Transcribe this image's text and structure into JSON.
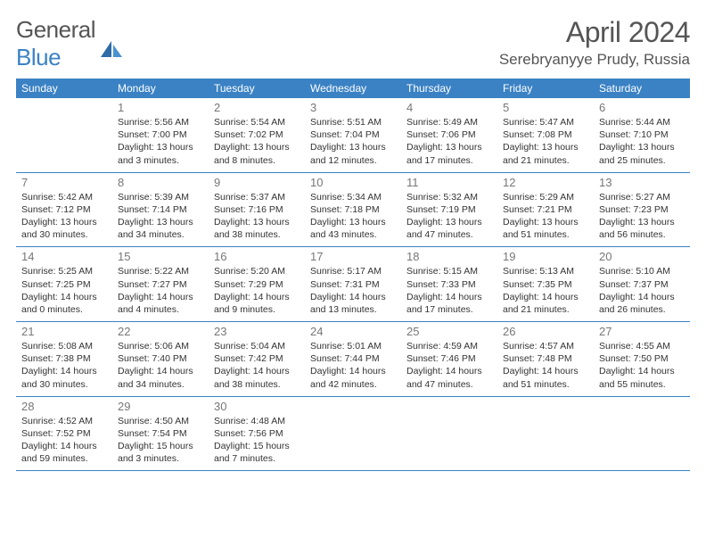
{
  "logo": {
    "general": "General",
    "blue": "Blue"
  },
  "title": "April 2024",
  "location": "Serebryanyye Prudy, Russia",
  "colors": {
    "header_bg": "#3b82c4",
    "header_text": "#ffffff",
    "body_bg": "#ffffff",
    "text": "#333333",
    "day_number": "#777777",
    "divider": "#3b82c4"
  },
  "typography": {
    "title_fontsize": 32,
    "location_fontsize": 17,
    "weekday_fontsize": 12,
    "daynum_fontsize": 13,
    "body_fontsize": 10.5
  },
  "weekdays": [
    "Sunday",
    "Monday",
    "Tuesday",
    "Wednesday",
    "Thursday",
    "Friday",
    "Saturday"
  ],
  "weeks": [
    [
      null,
      {
        "n": "1",
        "sr": "Sunrise: 5:56 AM",
        "ss": "Sunset: 7:00 PM",
        "d1": "Daylight: 13 hours",
        "d2": "and 3 minutes."
      },
      {
        "n": "2",
        "sr": "Sunrise: 5:54 AM",
        "ss": "Sunset: 7:02 PM",
        "d1": "Daylight: 13 hours",
        "d2": "and 8 minutes."
      },
      {
        "n": "3",
        "sr": "Sunrise: 5:51 AM",
        "ss": "Sunset: 7:04 PM",
        "d1": "Daylight: 13 hours",
        "d2": "and 12 minutes."
      },
      {
        "n": "4",
        "sr": "Sunrise: 5:49 AM",
        "ss": "Sunset: 7:06 PM",
        "d1": "Daylight: 13 hours",
        "d2": "and 17 minutes."
      },
      {
        "n": "5",
        "sr": "Sunrise: 5:47 AM",
        "ss": "Sunset: 7:08 PM",
        "d1": "Daylight: 13 hours",
        "d2": "and 21 minutes."
      },
      {
        "n": "6",
        "sr": "Sunrise: 5:44 AM",
        "ss": "Sunset: 7:10 PM",
        "d1": "Daylight: 13 hours",
        "d2": "and 25 minutes."
      }
    ],
    [
      {
        "n": "7",
        "sr": "Sunrise: 5:42 AM",
        "ss": "Sunset: 7:12 PM",
        "d1": "Daylight: 13 hours",
        "d2": "and 30 minutes."
      },
      {
        "n": "8",
        "sr": "Sunrise: 5:39 AM",
        "ss": "Sunset: 7:14 PM",
        "d1": "Daylight: 13 hours",
        "d2": "and 34 minutes."
      },
      {
        "n": "9",
        "sr": "Sunrise: 5:37 AM",
        "ss": "Sunset: 7:16 PM",
        "d1": "Daylight: 13 hours",
        "d2": "and 38 minutes."
      },
      {
        "n": "10",
        "sr": "Sunrise: 5:34 AM",
        "ss": "Sunset: 7:18 PM",
        "d1": "Daylight: 13 hours",
        "d2": "and 43 minutes."
      },
      {
        "n": "11",
        "sr": "Sunrise: 5:32 AM",
        "ss": "Sunset: 7:19 PM",
        "d1": "Daylight: 13 hours",
        "d2": "and 47 minutes."
      },
      {
        "n": "12",
        "sr": "Sunrise: 5:29 AM",
        "ss": "Sunset: 7:21 PM",
        "d1": "Daylight: 13 hours",
        "d2": "and 51 minutes."
      },
      {
        "n": "13",
        "sr": "Sunrise: 5:27 AM",
        "ss": "Sunset: 7:23 PM",
        "d1": "Daylight: 13 hours",
        "d2": "and 56 minutes."
      }
    ],
    [
      {
        "n": "14",
        "sr": "Sunrise: 5:25 AM",
        "ss": "Sunset: 7:25 PM",
        "d1": "Daylight: 14 hours",
        "d2": "and 0 minutes."
      },
      {
        "n": "15",
        "sr": "Sunrise: 5:22 AM",
        "ss": "Sunset: 7:27 PM",
        "d1": "Daylight: 14 hours",
        "d2": "and 4 minutes."
      },
      {
        "n": "16",
        "sr": "Sunrise: 5:20 AM",
        "ss": "Sunset: 7:29 PM",
        "d1": "Daylight: 14 hours",
        "d2": "and 9 minutes."
      },
      {
        "n": "17",
        "sr": "Sunrise: 5:17 AM",
        "ss": "Sunset: 7:31 PM",
        "d1": "Daylight: 14 hours",
        "d2": "and 13 minutes."
      },
      {
        "n": "18",
        "sr": "Sunrise: 5:15 AM",
        "ss": "Sunset: 7:33 PM",
        "d1": "Daylight: 14 hours",
        "d2": "and 17 minutes."
      },
      {
        "n": "19",
        "sr": "Sunrise: 5:13 AM",
        "ss": "Sunset: 7:35 PM",
        "d1": "Daylight: 14 hours",
        "d2": "and 21 minutes."
      },
      {
        "n": "20",
        "sr": "Sunrise: 5:10 AM",
        "ss": "Sunset: 7:37 PM",
        "d1": "Daylight: 14 hours",
        "d2": "and 26 minutes."
      }
    ],
    [
      {
        "n": "21",
        "sr": "Sunrise: 5:08 AM",
        "ss": "Sunset: 7:38 PM",
        "d1": "Daylight: 14 hours",
        "d2": "and 30 minutes."
      },
      {
        "n": "22",
        "sr": "Sunrise: 5:06 AM",
        "ss": "Sunset: 7:40 PM",
        "d1": "Daylight: 14 hours",
        "d2": "and 34 minutes."
      },
      {
        "n": "23",
        "sr": "Sunrise: 5:04 AM",
        "ss": "Sunset: 7:42 PM",
        "d1": "Daylight: 14 hours",
        "d2": "and 38 minutes."
      },
      {
        "n": "24",
        "sr": "Sunrise: 5:01 AM",
        "ss": "Sunset: 7:44 PM",
        "d1": "Daylight: 14 hours",
        "d2": "and 42 minutes."
      },
      {
        "n": "25",
        "sr": "Sunrise: 4:59 AM",
        "ss": "Sunset: 7:46 PM",
        "d1": "Daylight: 14 hours",
        "d2": "and 47 minutes."
      },
      {
        "n": "26",
        "sr": "Sunrise: 4:57 AM",
        "ss": "Sunset: 7:48 PM",
        "d1": "Daylight: 14 hours",
        "d2": "and 51 minutes."
      },
      {
        "n": "27",
        "sr": "Sunrise: 4:55 AM",
        "ss": "Sunset: 7:50 PM",
        "d1": "Daylight: 14 hours",
        "d2": "and 55 minutes."
      }
    ],
    [
      {
        "n": "28",
        "sr": "Sunrise: 4:52 AM",
        "ss": "Sunset: 7:52 PM",
        "d1": "Daylight: 14 hours",
        "d2": "and 59 minutes."
      },
      {
        "n": "29",
        "sr": "Sunrise: 4:50 AM",
        "ss": "Sunset: 7:54 PM",
        "d1": "Daylight: 15 hours",
        "d2": "and 3 minutes."
      },
      {
        "n": "30",
        "sr": "Sunrise: 4:48 AM",
        "ss": "Sunset: 7:56 PM",
        "d1": "Daylight: 15 hours",
        "d2": "and 7 minutes."
      },
      null,
      null,
      null,
      null
    ]
  ]
}
